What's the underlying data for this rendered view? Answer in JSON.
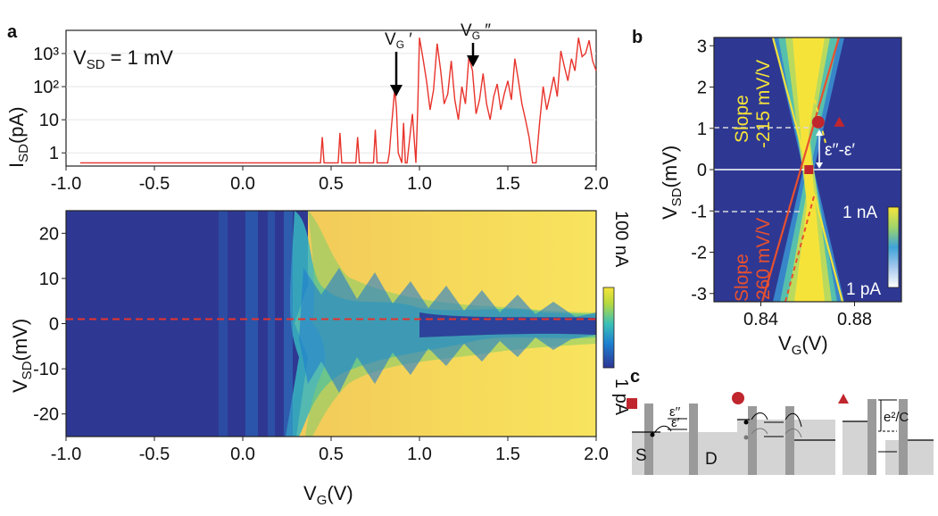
{
  "panels": {
    "a": "a",
    "b": "b",
    "c": "c"
  },
  "chart_data": [
    {
      "id": "a-top",
      "type": "line",
      "title": "",
      "annotation": "V_SD = 1 mV",
      "xlabel": "",
      "ylabel": "I_SD(pA)",
      "xlim": [
        -1.0,
        2.0
      ],
      "yscale": "log",
      "ylim": [
        0.4,
        5000
      ],
      "xticks": [
        "-1.0",
        "-0.5",
        "0.0",
        "0.5",
        "1.0",
        "1.5",
        "2.0"
      ],
      "xtick_values": [
        -1.0,
        -0.5,
        0.0,
        0.5,
        1.0,
        1.5,
        2.0
      ],
      "yticks": [
        "1",
        "10",
        "10²",
        "10³"
      ],
      "ytick_values": [
        1,
        10,
        100,
        1000
      ],
      "line_color": "#e8332b",
      "markers": [
        {
          "label": "V_G′",
          "x": 0.86,
          "y": 90
        },
        {
          "label": "V_G″",
          "x": 1.29,
          "y": 300
        }
      ],
      "series": [
        {
          "name": "I_SD",
          "x": [
            -0.92,
            0.44,
            0.45,
            0.46,
            0.54,
            0.55,
            0.56,
            0.64,
            0.65,
            0.66,
            0.74,
            0.75,
            0.76,
            0.82,
            0.83,
            0.84,
            0.85,
            0.86,
            0.87,
            0.88,
            0.9,
            0.91,
            0.92,
            0.93,
            0.95,
            0.96,
            0.98,
            0.99,
            1.0,
            1.02,
            1.04,
            1.06,
            1.08,
            1.1,
            1.12,
            1.14,
            1.16,
            1.18,
            1.2,
            1.22,
            1.24,
            1.26,
            1.28,
            1.3,
            1.32,
            1.34,
            1.36,
            1.38,
            1.4,
            1.42,
            1.44,
            1.46,
            1.48,
            1.5,
            1.52,
            1.54,
            1.56,
            1.58,
            1.6,
            1.62,
            1.64,
            1.66,
            1.68,
            1.7,
            1.72,
            1.74,
            1.76,
            1.78,
            1.8,
            1.82,
            1.84,
            1.86,
            1.88,
            1.9,
            1.92,
            1.94,
            1.96,
            1.98,
            2.0
          ],
          "y": [
            0.5,
            0.5,
            3,
            0.5,
            0.5,
            4,
            0.5,
            0.5,
            3,
            0.5,
            0.5,
            5,
            0.5,
            0.5,
            1,
            5,
            20,
            90,
            20,
            1,
            0.5,
            8,
            0.5,
            0.5,
            5,
            15,
            0.5,
            20,
            3000,
            700,
            150,
            20,
            80,
            2000,
            300,
            30,
            60,
            600,
            40,
            10,
            100,
            30,
            800,
            300,
            15,
            40,
            250,
            30,
            10,
            50,
            120,
            20,
            60,
            150,
            40,
            700,
            150,
            30,
            10,
            3,
            0.5,
            0.5,
            8,
            100,
            20,
            60,
            200,
            50,
            1200,
            400,
            150,
            700,
            300,
            3000,
            800,
            1000,
            2500,
            600,
            300
          ]
        }
      ]
    },
    {
      "id": "a-map",
      "type": "heatmap",
      "xlabel": "V_G(V)",
      "ylabel": "V_SD(mV)",
      "xlim": [
        -1.0,
        2.0
      ],
      "ylim": [
        -25,
        25
      ],
      "xticks": [
        "-1.0",
        "-0.5",
        "0.0",
        "0.5",
        "1.0",
        "1.5",
        "2.0"
      ],
      "xtick_values": [
        -1.0,
        -0.5,
        0.0,
        0.5,
        1.0,
        1.5,
        2.0
      ],
      "yticks": [
        "20",
        "10",
        "0",
        "-10",
        "-20"
      ],
      "ytick_values": [
        20,
        10,
        0,
        -10,
        -20
      ],
      "colorbar": {
        "max_label": "100 nA",
        "min_label": "1 pA"
      },
      "dashed_line": {
        "y": 1,
        "color": "#e8332b"
      }
    },
    {
      "id": "b-map",
      "type": "heatmap",
      "xlabel": "V_G(V)",
      "ylabel": "V_SD(mV)",
      "xlim": [
        0.82,
        0.9
      ],
      "ylim": [
        -3.2,
        3.2
      ],
      "xticks": [
        "0.84",
        "0.88"
      ],
      "xtick_values": [
        0.84,
        0.88
      ],
      "yticks": [
        "3",
        "2",
        "1",
        "0",
        "-1",
        "-2",
        "-3"
      ],
      "ytick_values": [
        3,
        2,
        1,
        0,
        -1,
        -2,
        -3
      ],
      "colorbar": {
        "max_label": "1 nA",
        "min_label": "1 pA"
      },
      "lines": [
        {
          "label": "Slope\n-215 mV/V",
          "color": "#f5e23a"
        },
        {
          "label": "Slope\n260 mV/V",
          "color": "#e8502e"
        }
      ],
      "gap_label": "ε′′-ε′",
      "markers": [
        {
          "shape": "square",
          "x": 0.8605,
          "y": 0,
          "color": "#c0262d"
        },
        {
          "shape": "circle",
          "x": 0.8645,
          "y": 1.15,
          "color": "#c0262d"
        },
        {
          "shape": "triangle",
          "x": 0.8735,
          "y": 1.15,
          "color": "#c0262d"
        }
      ]
    }
  ],
  "panel_c": {
    "source_label": "S",
    "drain_label": "D",
    "level_upper": "ε′′",
    "level_lower": "ε′",
    "charging_energy_label": "e²/C"
  }
}
